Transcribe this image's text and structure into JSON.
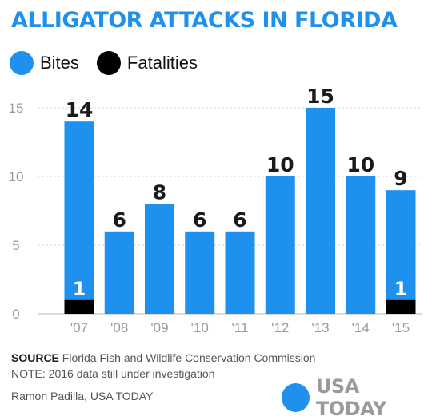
{
  "title": "ALLIGATOR ATTACKS IN FLORIDA",
  "legend": [
    {
      "label": "Bites",
      "color": "#1e90ee"
    },
    {
      "label": "Fatalities",
      "color": "#000000"
    }
  ],
  "chart_data": {
    "type": "bar",
    "categories": [
      "'07",
      "'08",
      "'09",
      "'10",
      "'11",
      "'12",
      "'13",
      "'14",
      "'15"
    ],
    "series": [
      {
        "name": "Bites",
        "values": [
          14,
          6,
          8,
          6,
          6,
          10,
          15,
          10,
          9
        ],
        "color": "#1e90ee"
      },
      {
        "name": "Fatalities",
        "values": [
          1,
          0,
          0,
          0,
          0,
          0,
          0,
          0,
          1
        ],
        "color": "#000000"
      }
    ],
    "yticks": [
      0,
      5,
      10,
      15
    ],
    "ylim": [
      0,
      15
    ],
    "grid": true,
    "legend_position": "top-left"
  },
  "footer": {
    "source_label": "SOURCE",
    "source_text": "Florida Fish and Wildlife Conservation Commission",
    "note": "NOTE: 2016 data still under investigation",
    "credit": "Ramon Padilla, USA TODAY",
    "brand": "USA TODAY"
  }
}
